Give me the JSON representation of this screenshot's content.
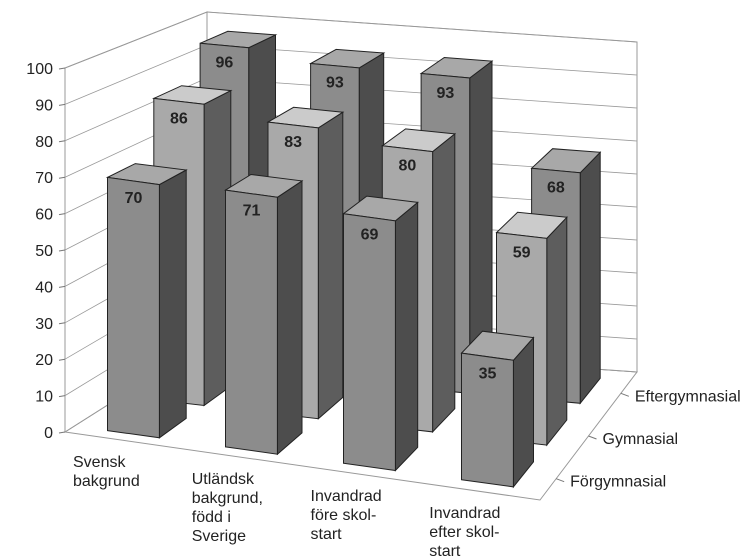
{
  "chart_data": {
    "type": "bar3d",
    "categories": [
      "Svensk\nbakgrund",
      "Utländsk\nbakgrund,\nfödd i\nSverige",
      "Invandrad\nföre skol-\nstart",
      "Invandrad\nefter skol-\nstart"
    ],
    "series": [
      {
        "name": "Förgymnasial",
        "color": "#8c8c8c",
        "values": [
          70,
          71,
          69,
          35
        ]
      },
      {
        "name": "Gymnasial",
        "color": "#a9a9a9",
        "values": [
          86,
          83,
          80,
          59
        ]
      },
      {
        "name": "Eftergymnasial",
        "color": "#8c8c8c",
        "values": [
          96,
          93,
          93,
          68
        ]
      }
    ],
    "ylim": [
      0,
      100
    ],
    "yticks": [
      0,
      10,
      20,
      30,
      40,
      50,
      60,
      70,
      80,
      90,
      100
    ],
    "grid": true
  }
}
